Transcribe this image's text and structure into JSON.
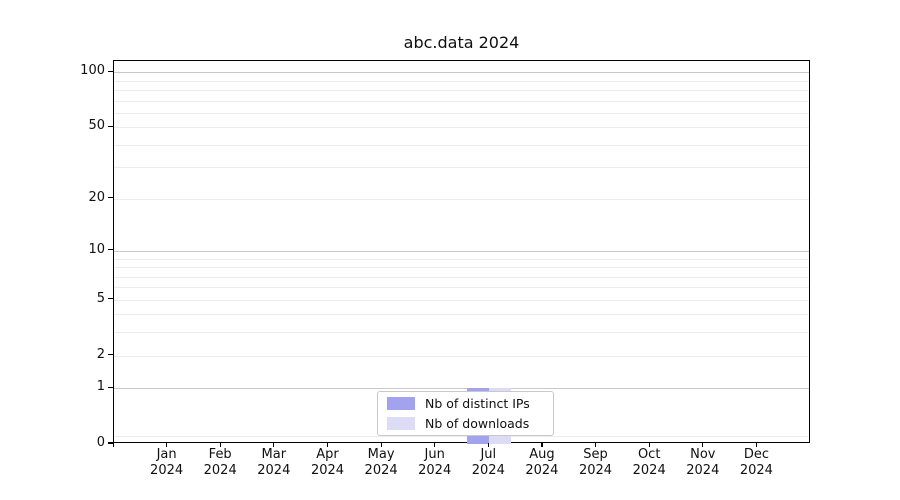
{
  "chart_data": {
    "type": "bar",
    "title": "abc.data 2024",
    "x": {
      "months": [
        "Jan",
        "Feb",
        "Mar",
        "Apr",
        "May",
        "Jun",
        "Jul",
        "Aug",
        "Sep",
        "Oct",
        "Nov",
        "Dec"
      ],
      "year": "2024"
    },
    "series": [
      {
        "name": "Nb of distinct IPs",
        "color": "#a2a2ee",
        "values": [
          0,
          0,
          0,
          0,
          0,
          0,
          1,
          0,
          0,
          0,
          0,
          0
        ]
      },
      {
        "name": "Nb of downloads",
        "color": "#dcdcf7",
        "values": [
          0,
          0,
          0,
          0,
          0,
          0,
          1,
          0,
          0,
          0,
          0,
          0
        ]
      }
    ],
    "y_axis": {
      "scale": "log1p",
      "ylim": [
        0,
        115
      ],
      "ymax": 115,
      "tick_values": [
        0,
        1,
        2,
        5,
        10,
        20,
        50,
        100
      ],
      "tick_labels": [
        "0",
        "1",
        "2",
        "5",
        "10",
        "20",
        "50",
        "100"
      ],
      "grid_major": [
        1,
        10,
        100
      ],
      "grid_minor": [
        0.1,
        2,
        3,
        4,
        5,
        6,
        7,
        8,
        9,
        20,
        30,
        40,
        50,
        60,
        70,
        80,
        90
      ]
    },
    "legend": {
      "position": "bottom-center"
    },
    "colors": {
      "spine": "#000000",
      "grid_major": "#c9c9c9",
      "grid_minor": "#ececec",
      "text": "#111111"
    }
  }
}
